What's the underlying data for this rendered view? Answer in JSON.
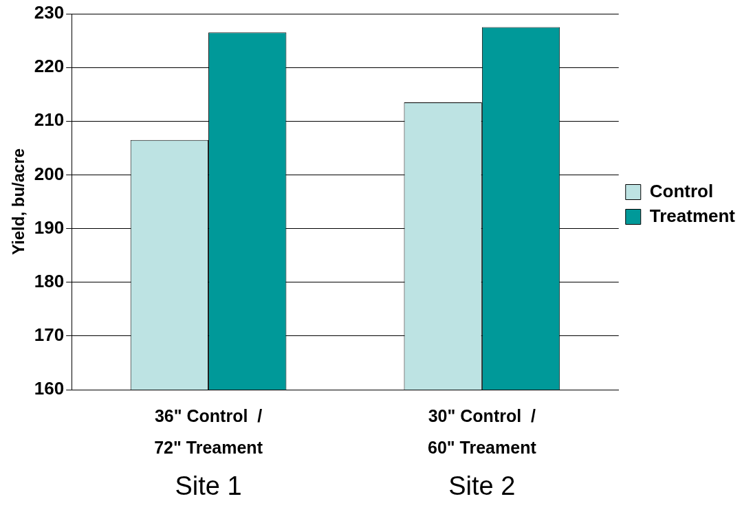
{
  "chart_data": {
    "type": "bar",
    "ylabel": "Yield, bu/acre",
    "categories": [
      "36\" Control  /\n72\" Treament",
      "30\" Control  /\n60\" Treament"
    ],
    "series": [
      {
        "name": "Control",
        "color": "#bde3e3",
        "values": [
          206.5,
          213.5
        ]
      },
      {
        "name": "Treatment",
        "color": "#009999",
        "values": [
          226.5,
          227.5
        ]
      }
    ],
    "ylim": [
      160,
      230
    ],
    "yticks": [
      160,
      170,
      180,
      190,
      200,
      210,
      220,
      230
    ],
    "grid": "y",
    "legend": "right",
    "annotations": [
      {
        "text": "Site 1",
        "x": "36\" Control  /\n72\" Treament"
      },
      {
        "text": "Site 2",
        "x": "30\" Control  /\n60\" Treament"
      }
    ]
  }
}
